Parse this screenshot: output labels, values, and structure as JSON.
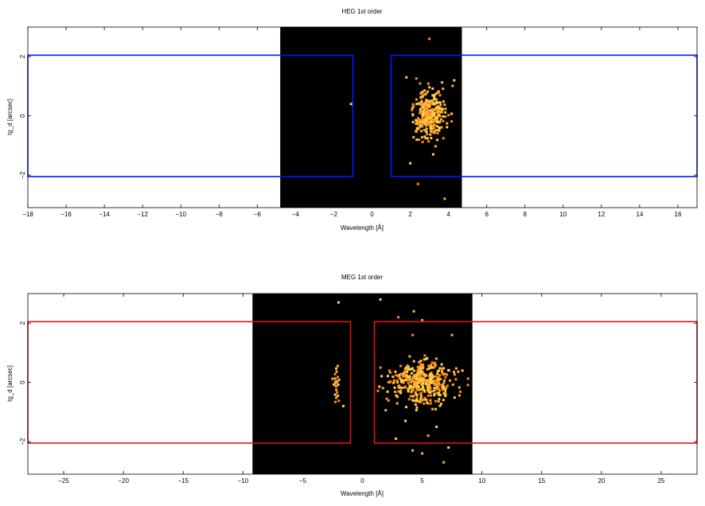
{
  "chart_data": [
    {
      "type": "heatmap",
      "title": "HEG 1st order",
      "xlabel": "Wavelength [Å]",
      "ylabel": "tg_d [arcsec]",
      "xlim": [
        -18,
        17
      ],
      "ylim": [
        -3.1,
        3.0
      ],
      "x_ticks": [
        -18,
        -16,
        -14,
        -12,
        -10,
        -8,
        -6,
        -4,
        -2,
        0,
        2,
        4,
        6,
        8,
        10,
        12,
        14,
        16
      ],
      "y_ticks": [
        -2,
        0,
        2
      ],
      "image_region": {
        "x": [
          -4.8,
          4.7
        ],
        "y": [
          -3.1,
          3.0
        ]
      },
      "colors": {
        "region": "#0019ff",
        "background": "#000000",
        "hot": "#ffd24a",
        "warm": "#ff8a1e"
      },
      "regions": [
        {
          "x": [
            -18,
            -1.0
          ],
          "y": [
            -2.05,
            2.05
          ]
        },
        {
          "x": [
            1.0,
            17
          ],
          "y": [
            -2.05,
            2.05
          ]
        }
      ],
      "clusters": [
        {
          "center": [
            3.0,
            0.1
          ],
          "spread": [
            0.7,
            0.65
          ],
          "count": 300,
          "ymin": -1.1,
          "ymax": 1.3
        }
      ],
      "points": [
        [
          -1.1,
          0.4
        ],
        [
          3.0,
          2.6
        ],
        [
          3.2,
          -1.3
        ],
        [
          2.4,
          -2.3
        ],
        [
          3.8,
          -2.8
        ],
        [
          2.0,
          -1.6
        ],
        [
          4.3,
          1.2
        ],
        [
          1.8,
          1.3
        ]
      ]
    },
    {
      "type": "heatmap",
      "title": "MEG 1st order",
      "xlabel": "Wavelength [Å]",
      "ylabel": "tg_d [arcsec]",
      "xlim": [
        -28,
        28
      ],
      "ylim": [
        -3.1,
        3.0
      ],
      "x_ticks": [
        -25,
        -20,
        -15,
        -10,
        -5,
        0,
        5,
        10,
        15,
        20,
        25
      ],
      "y_ticks": [
        -2,
        0,
        2
      ],
      "image_region": {
        "x": [
          -9.2,
          9.2
        ],
        "y": [
          -3.1,
          3.0
        ]
      },
      "colors": {
        "region": "#e0141a",
        "background": "#000000",
        "hot": "#ffd24a",
        "warm": "#ff8a1e"
      },
      "regions": [
        {
          "x": [
            -28,
            -1.0
          ],
          "y": [
            -2.05,
            2.05
          ]
        },
        {
          "x": [
            1.0,
            28
          ],
          "y": [
            -2.05,
            2.05
          ]
        }
      ],
      "clusters": [
        {
          "center": [
            5.0,
            0.0
          ],
          "spread": [
            2.2,
            0.6
          ],
          "count": 420,
          "ymin": -1.0,
          "ymax": 1.1
        },
        {
          "center": [
            -2.2,
            -0.1
          ],
          "spread": [
            0.25,
            0.55
          ],
          "count": 25,
          "ymin": -1.0,
          "ymax": 0.7
        }
      ],
      "points": [
        [
          -2.0,
          2.7
        ],
        [
          1.5,
          2.8
        ],
        [
          4.3,
          2.4
        ],
        [
          5.0,
          2.1
        ],
        [
          4.2,
          1.6
        ],
        [
          7.5,
          1.6
        ],
        [
          3.6,
          -1.3
        ],
        [
          6.2,
          -1.5
        ],
        [
          4.2,
          -2.3
        ],
        [
          6.8,
          -2.7
        ],
        [
          5.0,
          -2.4
        ],
        [
          7.2,
          -2.2
        ],
        [
          5.5,
          -1.8
        ],
        [
          2.8,
          -1.9
        ],
        [
          3.0,
          2.2
        ],
        [
          -1.6,
          -0.8
        ]
      ]
    }
  ]
}
